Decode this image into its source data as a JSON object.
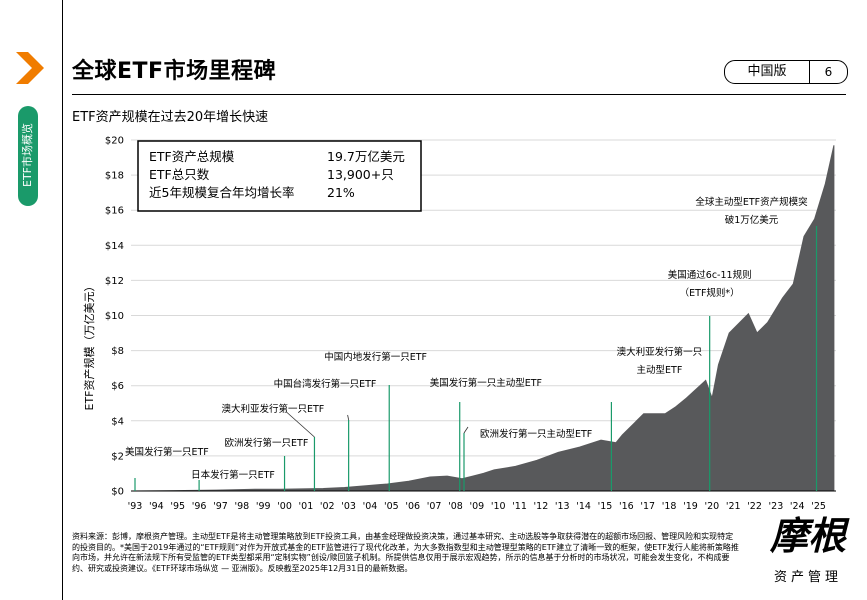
{
  "header": {
    "title": "全球ETF市场里程碑",
    "region_label": "中国版",
    "page_number": "6"
  },
  "sidebar": {
    "tab_label": "ETF市场概览"
  },
  "subtitle": "ETF资产规模在过去20年增长快速",
  "chart_data": {
    "type": "area",
    "ylabel": "ETF资产规模（万亿美元）",
    "xlabel": "",
    "ylim": [
      0,
      20
    ],
    "y_ticks": [
      "$0",
      "$2",
      "$4",
      "$6",
      "$8",
      "$10",
      "$12",
      "$14",
      "$16",
      "$18",
      "$20"
    ],
    "x_ticks": [
      "'93",
      "'94",
      "'95",
      "'96",
      "'97",
      "'98",
      "'99",
      "'00",
      "'01",
      "'02",
      "'03",
      "'04",
      "'05",
      "'06",
      "'07",
      "'08",
      "'09",
      "'10",
      "'11",
      "'12",
      "'13",
      "'14",
      "'15",
      "'16",
      "'17",
      "'18",
      "'19",
      "'20",
      "'21",
      "'22",
      "'23",
      "'24",
      "'25"
    ],
    "grid": true,
    "color": "#58595b",
    "marker_color": "#1a9a6a",
    "x": [
      1993.0,
      1995.0,
      1997.0,
      1999.0,
      2000.0,
      2001.0,
      2002.0,
      2003.0,
      2004.0,
      2005.0,
      2006.0,
      2007.0,
      2007.8,
      2008.5,
      2009.0,
      2009.5,
      2010.0,
      2011.0,
      2012.0,
      2013.0,
      2014.0,
      2015.0,
      2015.7,
      2016.0,
      2017.0,
      2018.0,
      2018.5,
      2019.0,
      2019.9,
      2020.2,
      2020.5,
      2021.0,
      2021.9,
      2022.3,
      2022.8,
      2023.5,
      2024.0,
      2024.5,
      2025.0,
      2025.5,
      2025.9
    ],
    "y": [
      0.0,
      0.02,
      0.05,
      0.1,
      0.1,
      0.12,
      0.14,
      0.2,
      0.3,
      0.4,
      0.55,
      0.8,
      0.85,
      0.7,
      0.85,
      1.0,
      1.2,
      1.4,
      1.75,
      2.2,
      2.5,
      2.9,
      2.75,
      3.2,
      4.4,
      4.4,
      4.8,
      5.3,
      6.3,
      5.3,
      7.2,
      9.0,
      10.1,
      9.0,
      9.6,
      11.0,
      11.8,
      14.5,
      15.5,
      17.5,
      19.7
    ]
  },
  "summary_box": {
    "rows": [
      {
        "label": "ETF资产总规模",
        "value": "19.7万亿美元"
      },
      {
        "label": "ETF总只数",
        "value": "13,900+只"
      },
      {
        "label": "近5年规模复合年均增长率",
        "value": "21%"
      }
    ]
  },
  "milestones": [
    {
      "year": 1993.0,
      "line": [
        "美国发行第一只ETF"
      ]
    },
    {
      "year": 1996.0,
      "line": [
        "日本发行第一只ETF"
      ]
    },
    {
      "year": 2000.0,
      "line": [
        "欧洲发行第一只ETF"
      ]
    },
    {
      "year": 2001.4,
      "line": [
        "澳大利亚发行第一只ETF"
      ]
    },
    {
      "year": 2003.0,
      "line": [
        "中国台湾发行第一只ETF"
      ]
    },
    {
      "year": 2004.9,
      "line": [
        "中国内地发行第一只ETF"
      ]
    },
    {
      "year": 2008.2,
      "line": [
        "美国发行第一只主动型ETF"
      ]
    },
    {
      "year": 2008.4,
      "line": [
        "欧洲发行第一只主动型ETF"
      ]
    },
    {
      "year": 2015.3,
      "line": [
        "澳大利亚发行第一只",
        "主动型ETF"
      ]
    },
    {
      "year": 2019.9,
      "line": [
        "美国通过6c-11规则",
        "（ETF规则*）"
      ]
    },
    {
      "year": 2024.9,
      "line": [
        "全球主动型ETF资产规模突",
        "破1万亿美元"
      ]
    }
  ],
  "footnote": "资料来源：彭博，摩根资产管理。主动型ETF是将主动管理策略放到ETF投资工具，由基金经理做投资决策，通过基本研究、主动选股等争取获得潜在的超额市场回报、管理风险和实现特定的投资目的。*美国于2019年通过的“ETF规则”对作为开放式基金的ETF监管进行了现代化改革，为大多数指数型和主动管理型策略的ETF建立了清晰一致的框架，使ETF发行人能将新策略推向市场，并允许在新法规下所有受监管的ETF类型都采用“定制实物”创设/赎回篮子机制。所提供信息仅用于展示宏观趋势，所示的信息基于分析时的市场状况，可能会发生变化，不构成要约、研究或投资建议。《ETF环球市场纵览 — 亚洲版》。反映截至2025年12月31日的最新数据。",
  "brand": {
    "name": "摩根",
    "sub": "资产管理"
  }
}
